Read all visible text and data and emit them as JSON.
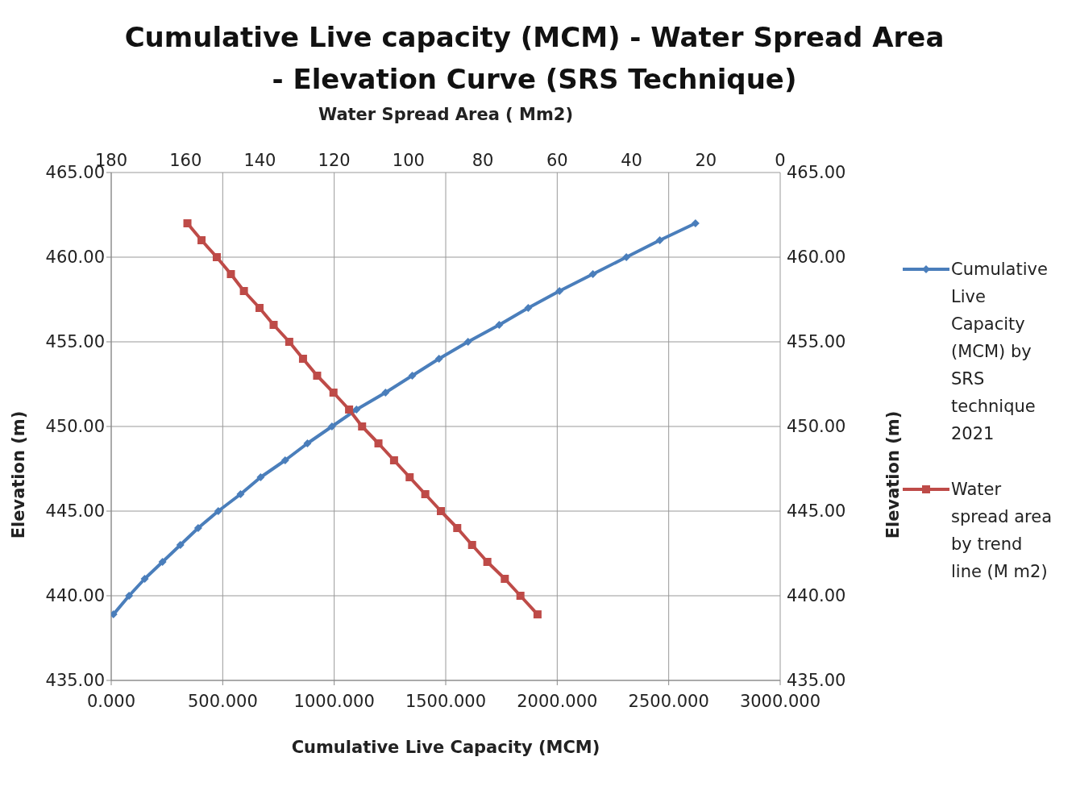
{
  "chart_data": {
    "type": "line",
    "title": "Cumulative Live capacity (MCM) - Water Spread Area - Elevation Curve (SRS Technique)",
    "xlabel": "Cumulative Live Capacity (MCM)",
    "x2label": "Water Spread Area ( Mm2)",
    "ylabel": "Elevation (m)",
    "y2label": "Elevation (m)",
    "xlim": [
      0,
      3000
    ],
    "xticks": [
      {
        "value": 0,
        "label": "0.000"
      },
      {
        "value": 500,
        "label": "500.000"
      },
      {
        "value": 1000,
        "label": "1000.000"
      },
      {
        "value": 1500,
        "label": "1500.000"
      },
      {
        "value": 2000,
        "label": "2000.000"
      },
      {
        "value": 2500,
        "label": "2500.000"
      },
      {
        "value": 3000,
        "label": "3000.000"
      }
    ],
    "x2lim": [
      180,
      0
    ],
    "x2ticks": [
      180,
      160,
      140,
      120,
      100,
      80,
      60,
      40,
      20,
      0
    ],
    "ylim": [
      435,
      465
    ],
    "yticks": [
      {
        "value": 435,
        "label": "435.00"
      },
      {
        "value": 440,
        "label": "440.00"
      },
      {
        "value": 445,
        "label": "445.00"
      },
      {
        "value": 450,
        "label": "450.00"
      },
      {
        "value": 455,
        "label": "455.00"
      },
      {
        "value": 460,
        "label": "460.00"
      },
      {
        "value": 465,
        "label": "465.00"
      }
    ],
    "y2lim": [
      435,
      465
    ],
    "y2ticks": [
      {
        "value": 435,
        "label": "435.00"
      },
      {
        "value": 440,
        "label": "440.00"
      },
      {
        "value": 445,
        "label": "445.00"
      },
      {
        "value": 450,
        "label": "450.00"
      },
      {
        "value": 455,
        "label": "455.00"
      },
      {
        "value": 460,
        "label": "460.00"
      },
      {
        "value": 465,
        "label": "465.00"
      }
    ],
    "grid": true,
    "legend": "right",
    "line_style": "solid",
    "series": [
      {
        "name": "Cumulative Live Capacity (MCM) by SRS technique 2021",
        "color": "#4a7ebb",
        "marker": "diamond",
        "x": [
          10,
          80,
          150,
          230,
          310,
          390,
          480,
          580,
          670,
          780,
          880,
          990,
          1100,
          1230,
          1350,
          1470,
          1600,
          1740,
          1870,
          2010,
          2160,
          2310,
          2460,
          2620
        ],
        "values": [
          438.9,
          440,
          441,
          442,
          443,
          444,
          445,
          446,
          447,
          448,
          449,
          450,
          451,
          452,
          453,
          454,
          455,
          456,
          457,
          458,
          459,
          460,
          461,
          462
        ]
      },
      {
        "name": "Water spread area by trend line (M m2)",
        "color": "#be4b48",
        "marker": "square",
        "axis": "x2",
        "x": [
          159.5,
          155.7,
          151.6,
          147.8,
          144.3,
          140.1,
          136.3,
          132.1,
          128.4,
          124.6,
          120.2,
          116.0,
          112.5,
          108.1,
          103.9,
          99.7,
          95.5,
          91.3,
          86.9,
          82.9,
          78.8,
          74.1,
          69.9,
          65.3
        ],
        "values": [
          462,
          461,
          460,
          459,
          458,
          457,
          456,
          455,
          454,
          453,
          452,
          451,
          450,
          449,
          448,
          447,
          446,
          445,
          444,
          443,
          442,
          441,
          440,
          438.9
        ]
      }
    ]
  }
}
